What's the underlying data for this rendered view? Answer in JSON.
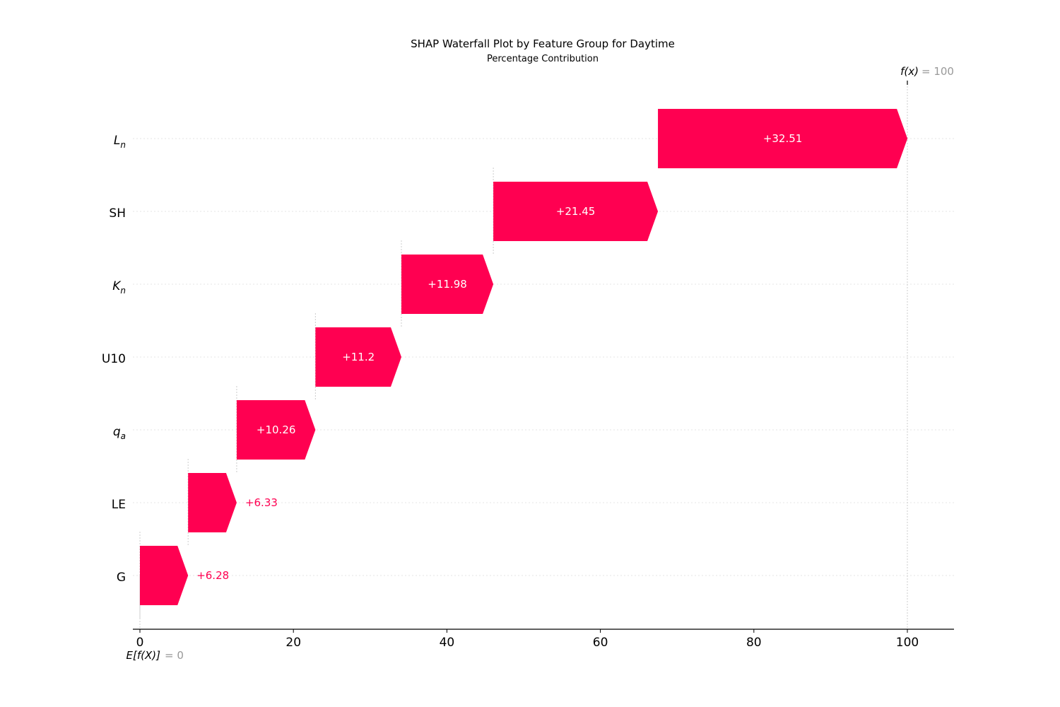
{
  "chart_data": {
    "type": "bar",
    "title": "SHAP Waterfall Plot by Feature Group for Daytime",
    "subtitle": "Percentage Contribution",
    "features": [
      {
        "name": "L",
        "sub": "n",
        "italic": true,
        "value": 32.51,
        "label": "+32.51"
      },
      {
        "name": "SH",
        "sub": "",
        "italic": false,
        "value": 21.45,
        "label": "+21.45"
      },
      {
        "name": "K",
        "sub": "n",
        "italic": true,
        "value": 11.98,
        "label": "+11.98"
      },
      {
        "name": "U10",
        "sub": "",
        "italic": false,
        "value": 11.2,
        "label": "+11.2"
      },
      {
        "name": "q",
        "sub": "a",
        "italic": true,
        "value": 10.26,
        "label": "+10.26"
      },
      {
        "name": "LE",
        "sub": "",
        "italic": false,
        "value": 6.33,
        "label": "+6.33"
      },
      {
        "name": "G",
        "sub": "",
        "italic": false,
        "value": 6.28,
        "label": "+6.28"
      }
    ],
    "base_value": 0,
    "base_label": "E[f(X)]",
    "base_value_text": "= 0",
    "final_value": 100,
    "final_label": "f(x)",
    "final_value_text": "= 100",
    "xticks": [
      0,
      20,
      40,
      60,
      80,
      100
    ],
    "xlim": [
      -1,
      106
    ],
    "colors": {
      "positive": "#ff0051",
      "grid": "#cccccc",
      "axis": "#000000"
    }
  }
}
